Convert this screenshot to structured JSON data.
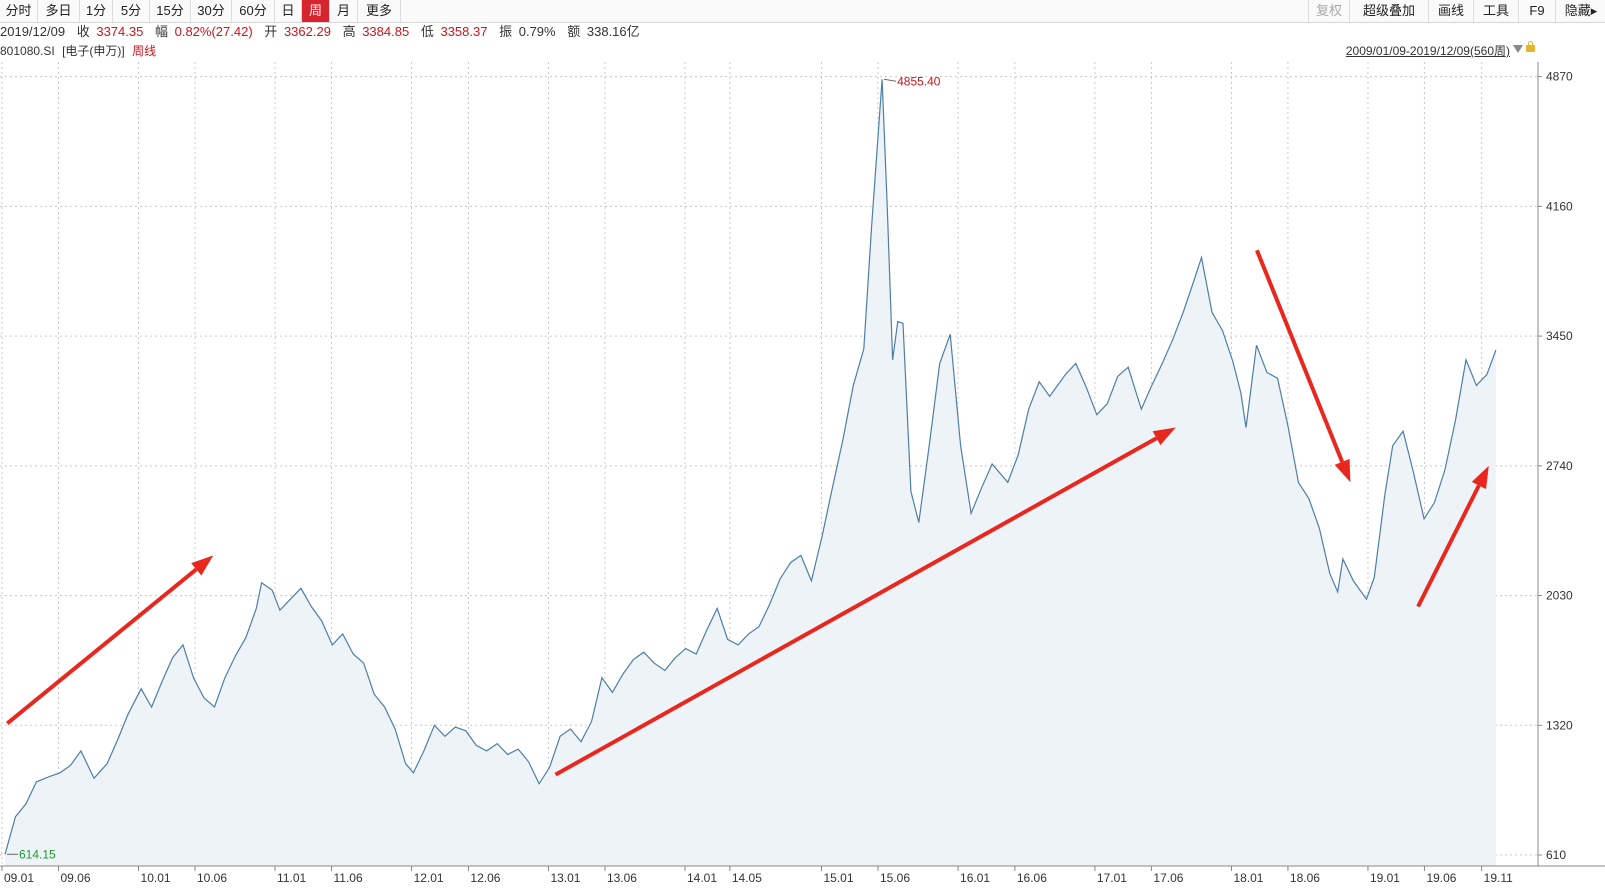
{
  "toolbar": {
    "left_buttons": [
      "分时",
      "多日",
      "1分",
      "5分",
      "15分",
      "30分",
      "60分",
      "日",
      "周",
      "月",
      "更多"
    ],
    "active": "周",
    "right_buttons": [
      "复权",
      "超级叠加",
      "画线",
      "工具",
      "F9",
      "隐藏"
    ]
  },
  "info": {
    "date": "2019/12/09",
    "close_label": "收",
    "close": "3374.35",
    "change_label": "幅",
    "change": "0.82%(27.42)",
    "open_label": "开",
    "open": "3362.29",
    "high_label": "高",
    "high": "3384.85",
    "low_label": "低",
    "low": "3358.37",
    "amp_label": "振",
    "amp": "0.79%",
    "amount_label": "额",
    "amount": "338.16亿"
  },
  "symbol": {
    "code": "801080.SI",
    "name": "[电子(申万)]",
    "period": "周线"
  },
  "range_label": "2009/01/09-2019/12/09(560周)",
  "colors": {
    "line": "#4d7ea8",
    "fill": "#eef3f8",
    "up": "#c8161d",
    "low": "#1c9a2f",
    "arrow": "#e8281f",
    "active": "#d6252e"
  },
  "chart_data": {
    "type": "line",
    "y_ticks": [
      610,
      1320,
      2030,
      2740,
      3450,
      4160,
      4870
    ],
    "x_tick_labels": [
      "09.01",
      "09.06",
      "10.01",
      "10.06",
      "11.01",
      "11.06",
      "12.01",
      "12.06",
      "13.01",
      "13.06",
      "14.01",
      "14.05",
      "15.01",
      "15.06",
      "16.01",
      "16.06",
      "17.01",
      "17.06",
      "18.01",
      "18.06",
      "19.01",
      "19.06",
      "19.11"
    ],
    "x_tick_dates": [
      "2009-01",
      "2009-06",
      "2010-01",
      "2010-06",
      "2011-01",
      "2011-06",
      "2012-01",
      "2012-06",
      "2013-01",
      "2013-06",
      "2014-01",
      "2014-05",
      "2015-01",
      "2015-06",
      "2016-01",
      "2016-06",
      "2017-01",
      "2017-06",
      "2018-01",
      "2018-06",
      "2019-01",
      "2019-06",
      "2019-11"
    ],
    "ylim": [
      550,
      4950
    ],
    "grid": true,
    "max_annotation": {
      "date": "2015-06-12",
      "value": 4855.4,
      "label": "4855.40"
    },
    "min_annotation": {
      "date": "2009-01-09",
      "value": 614.15,
      "label": "614.15"
    },
    "series": [
      {
        "points": [
          [
            "2009-01-09",
            614.15
          ],
          [
            "2009-02-06",
            820
          ],
          [
            "2009-03-06",
            890
          ],
          [
            "2009-04-03",
            1010
          ],
          [
            "2009-05-08",
            1040
          ],
          [
            "2009-06-05",
            1060
          ],
          [
            "2009-07-03",
            1100
          ],
          [
            "2009-07-31",
            1180
          ],
          [
            "2009-09-04",
            1030
          ],
          [
            "2009-10-09",
            1110
          ],
          [
            "2009-11-06",
            1240
          ],
          [
            "2009-12-04",
            1380
          ],
          [
            "2010-01-08",
            1520
          ],
          [
            "2010-02-05",
            1420
          ],
          [
            "2010-03-05",
            1560
          ],
          [
            "2010-04-02",
            1690
          ],
          [
            "2010-04-30",
            1760
          ],
          [
            "2010-05-28",
            1580
          ],
          [
            "2010-06-25",
            1470
          ],
          [
            "2010-07-23",
            1420
          ],
          [
            "2010-08-20",
            1580
          ],
          [
            "2010-09-17",
            1700
          ],
          [
            "2010-10-15",
            1800
          ],
          [
            "2010-11-12",
            1960
          ],
          [
            "2010-11-26",
            2100
          ],
          [
            "2010-12-24",
            2060
          ],
          [
            "2011-01-14",
            1950
          ],
          [
            "2011-02-11",
            2010
          ],
          [
            "2011-03-11",
            2070
          ],
          [
            "2011-04-08",
            1970
          ],
          [
            "2011-05-06",
            1890
          ],
          [
            "2011-06-03",
            1760
          ],
          [
            "2011-07-01",
            1820
          ],
          [
            "2011-07-29",
            1710
          ],
          [
            "2011-08-26",
            1660
          ],
          [
            "2011-09-23",
            1490
          ],
          [
            "2011-10-21",
            1420
          ],
          [
            "2011-11-18",
            1300
          ],
          [
            "2011-12-16",
            1110
          ],
          [
            "2012-01-06",
            1060
          ],
          [
            "2012-02-03",
            1180
          ],
          [
            "2012-03-02",
            1320
          ],
          [
            "2012-03-30",
            1260
          ],
          [
            "2012-04-27",
            1310
          ],
          [
            "2012-05-25",
            1290
          ],
          [
            "2012-06-22",
            1210
          ],
          [
            "2012-07-20",
            1180
          ],
          [
            "2012-08-17",
            1220
          ],
          [
            "2012-09-14",
            1160
          ],
          [
            "2012-10-12",
            1190
          ],
          [
            "2012-11-09",
            1120
          ],
          [
            "2012-12-07",
            1000
          ],
          [
            "2013-01-04",
            1090
          ],
          [
            "2013-02-01",
            1260
          ],
          [
            "2013-03-01",
            1300
          ],
          [
            "2013-03-29",
            1230
          ],
          [
            "2013-04-26",
            1340
          ],
          [
            "2013-05-24",
            1580
          ],
          [
            "2013-06-21",
            1500
          ],
          [
            "2013-07-19",
            1600
          ],
          [
            "2013-08-16",
            1680
          ],
          [
            "2013-09-13",
            1720
          ],
          [
            "2013-10-11",
            1660
          ],
          [
            "2013-11-08",
            1620
          ],
          [
            "2013-12-06",
            1690
          ],
          [
            "2014-01-03",
            1740
          ],
          [
            "2014-01-31",
            1710
          ],
          [
            "2014-02-28",
            1840
          ],
          [
            "2014-03-28",
            1960
          ],
          [
            "2014-04-25",
            1790
          ],
          [
            "2014-05-23",
            1760
          ],
          [
            "2014-06-20",
            1820
          ],
          [
            "2014-07-18",
            1860
          ],
          [
            "2014-08-15",
            1980
          ],
          [
            "2014-09-12",
            2120
          ],
          [
            "2014-10-10",
            2210
          ],
          [
            "2014-11-07",
            2250
          ],
          [
            "2014-12-05",
            2110
          ],
          [
            "2015-01-02",
            2350
          ],
          [
            "2015-01-30",
            2620
          ],
          [
            "2015-02-27",
            2880
          ],
          [
            "2015-03-27",
            3180
          ],
          [
            "2015-04-24",
            3380
          ],
          [
            "2015-05-15",
            4050
          ],
          [
            "2015-06-12",
            4855.4
          ],
          [
            "2015-06-26",
            4150
          ],
          [
            "2015-07-10",
            3320
          ],
          [
            "2015-07-24",
            3530
          ],
          [
            "2015-08-07",
            3520
          ],
          [
            "2015-08-28",
            2600
          ],
          [
            "2015-09-18",
            2430
          ],
          [
            "2015-10-16",
            2850
          ],
          [
            "2015-11-13",
            3300
          ],
          [
            "2015-12-11",
            3460
          ],
          [
            "2016-01-08",
            2850
          ],
          [
            "2016-02-05",
            2480
          ],
          [
            "2016-03-04",
            2620
          ],
          [
            "2016-04-01",
            2750
          ],
          [
            "2016-05-13",
            2650
          ],
          [
            "2016-06-10",
            2800
          ],
          [
            "2016-07-08",
            3050
          ],
          [
            "2016-08-05",
            3200
          ],
          [
            "2016-09-02",
            3120
          ],
          [
            "2016-10-14",
            3240
          ],
          [
            "2016-11-11",
            3300
          ],
          [
            "2016-12-09",
            3170
          ],
          [
            "2017-01-06",
            3020
          ],
          [
            "2017-02-03",
            3080
          ],
          [
            "2017-03-03",
            3230
          ],
          [
            "2017-03-31",
            3280
          ],
          [
            "2017-05-05",
            3050
          ],
          [
            "2017-06-02",
            3180
          ],
          [
            "2017-06-30",
            3300
          ],
          [
            "2017-07-28",
            3430
          ],
          [
            "2017-08-25",
            3580
          ],
          [
            "2017-09-22",
            3750
          ],
          [
            "2017-10-13",
            3880
          ],
          [
            "2017-11-10",
            3580
          ],
          [
            "2017-12-08",
            3480
          ],
          [
            "2018-01-05",
            3310
          ],
          [
            "2018-01-26",
            3140
          ],
          [
            "2018-02-09",
            2950
          ],
          [
            "2018-03-09",
            3400
          ],
          [
            "2018-04-06",
            3250
          ],
          [
            "2018-05-04",
            3220
          ],
          [
            "2018-06-01",
            2960
          ],
          [
            "2018-06-29",
            2650
          ],
          [
            "2018-07-27",
            2560
          ],
          [
            "2018-08-24",
            2400
          ],
          [
            "2018-09-21",
            2150
          ],
          [
            "2018-10-12",
            2050
          ],
          [
            "2018-10-26",
            2230
          ],
          [
            "2018-11-23",
            2110
          ],
          [
            "2018-12-28",
            2010
          ],
          [
            "2019-01-18",
            2130
          ],
          [
            "2019-02-15",
            2580
          ],
          [
            "2019-03-08",
            2850
          ],
          [
            "2019-04-05",
            2930
          ],
          [
            "2019-05-03",
            2700
          ],
          [
            "2019-05-31",
            2450
          ],
          [
            "2019-06-28",
            2540
          ],
          [
            "2019-07-26",
            2720
          ],
          [
            "2019-08-23",
            2990
          ],
          [
            "2019-09-20",
            3320
          ],
          [
            "2019-10-18",
            3180
          ],
          [
            "2019-11-15",
            3240
          ],
          [
            "2019-12-09",
            3374.35
          ]
        ]
      }
    ]
  }
}
